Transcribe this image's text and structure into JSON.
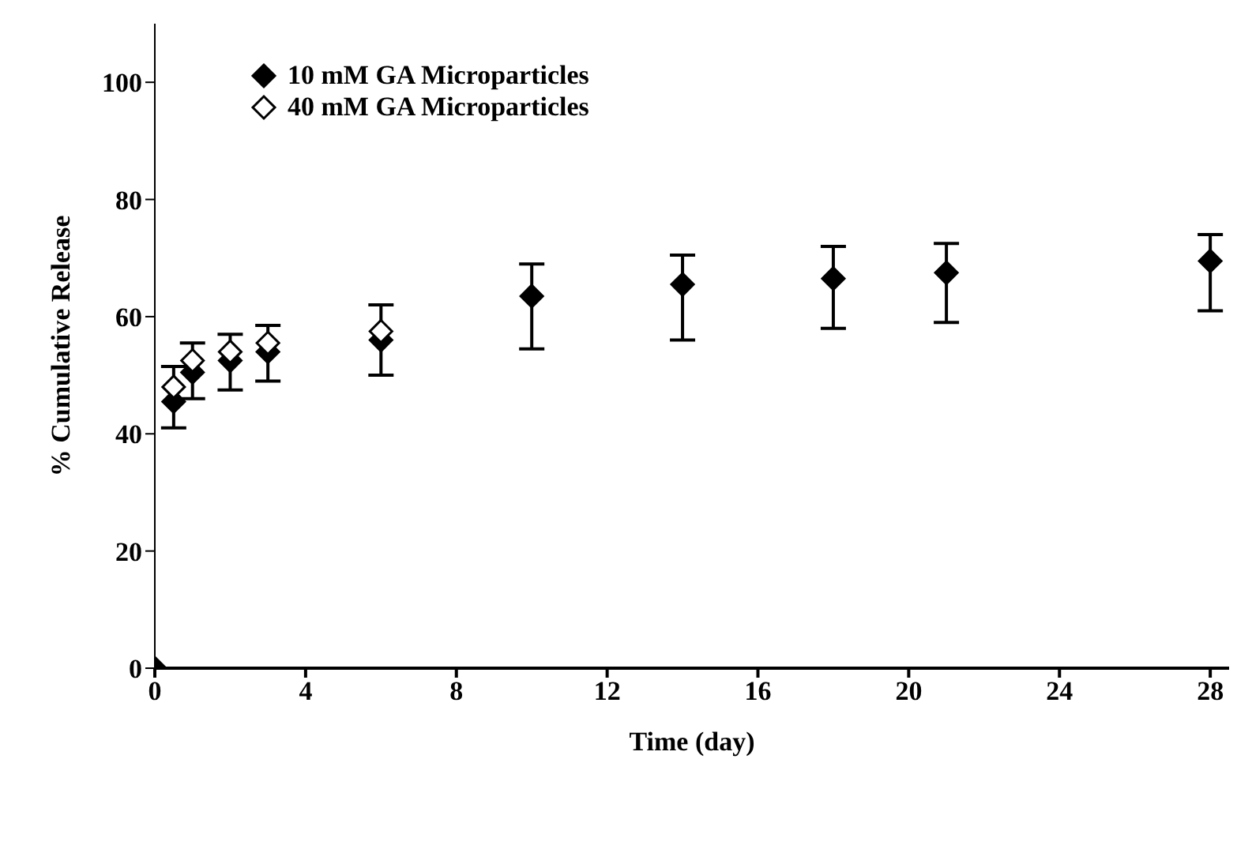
{
  "chart_data": {
    "type": "scatter",
    "xlabel": "Time (day)",
    "ylabel": "% Cumulative Release",
    "xlim": [
      0,
      28.5
    ],
    "xticks": [
      0,
      4,
      8,
      12,
      16,
      20,
      24,
      28
    ],
    "ylim": [
      0,
      110
    ],
    "yticks": [
      0,
      20,
      40,
      60,
      80,
      100
    ],
    "grid": false,
    "legend": "top left",
    "marker": "diamond",
    "series": [
      {
        "name": "10 mM GA Microparticles",
        "color": "#000000",
        "x": [
          0,
          0.5,
          1,
          2,
          3,
          6,
          10,
          14,
          18,
          21,
          28
        ],
        "values": [
          0,
          45.5,
          50.5,
          52.5,
          54,
          56,
          63.5,
          65.5,
          66.5,
          67.5,
          69.5
        ],
        "errors": [
          null,
          [
            41,
            51.5
          ],
          [
            46,
            55.5
          ],
          [
            47.5,
            57
          ],
          [
            49,
            58.5
          ],
          [
            50,
            62
          ],
          [
            54.5,
            69
          ],
          [
            56,
            70.5
          ],
          [
            58,
            72
          ],
          [
            59,
            72.5
          ],
          [
            61,
            74
          ]
        ]
      },
      {
        "name": "40 mM GA Microparticles",
        "color": "#ffffff",
        "x": [
          0.5,
          1,
          2,
          3,
          6
        ],
        "values": [
          48,
          52.5,
          54,
          55.5,
          57.5
        ]
      }
    ]
  }
}
